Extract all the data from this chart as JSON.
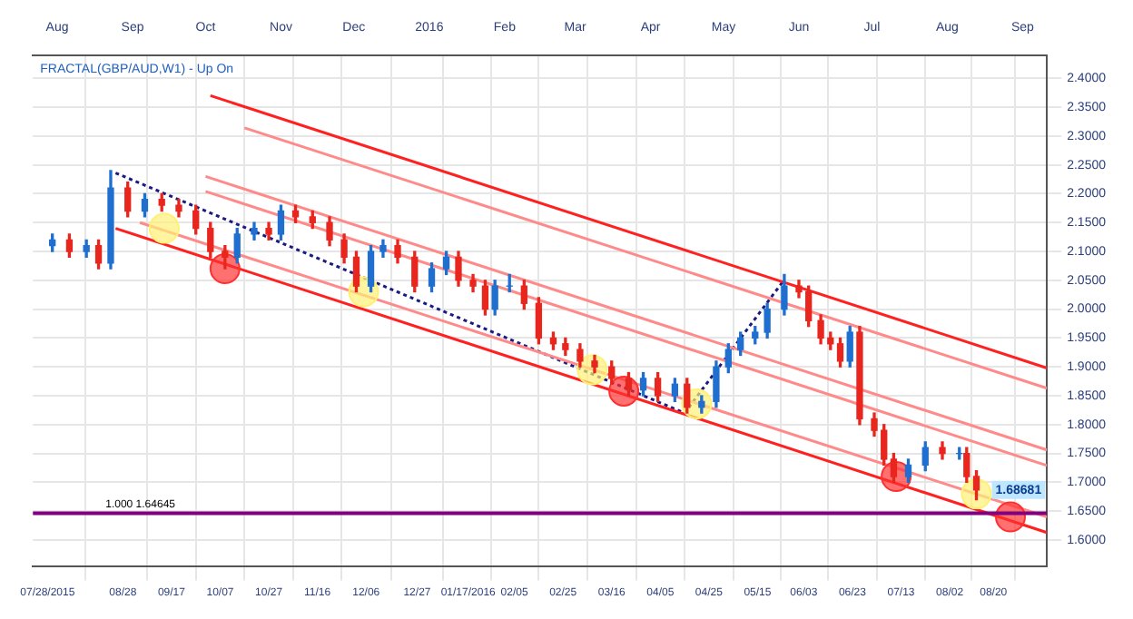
{
  "chart_data": {
    "type": "candlestick",
    "title": "FRACTAL(GBP/AUD,W1) - Up On",
    "x": [
      "2015-07-30",
      "2015-08-06",
      "2015-08-13",
      "2015-08-18",
      "2015-08-23",
      "2015-08-30",
      "2015-09-06",
      "2015-09-13",
      "2015-09-20",
      "2015-09-27",
      "2015-10-03",
      "2015-10-09",
      "2015-10-14",
      "2015-10-21",
      "2015-10-27",
      "2015-11-01",
      "2015-11-07",
      "2015-11-14",
      "2015-11-21",
      "2015-11-27",
      "2015-12-02",
      "2015-12-08",
      "2015-12-13",
      "2015-12-19",
      "2015-12-26",
      "2016-01-02",
      "2016-01-08",
      "2016-01-13",
      "2016-01-19",
      "2016-01-24",
      "2016-01-28",
      "2016-02-03",
      "2016-02-09",
      "2016-02-15",
      "2016-02-21",
      "2016-02-26",
      "2016-03-03",
      "2016-03-09",
      "2016-03-16",
      "2016-03-23",
      "2016-03-29",
      "2016-04-04",
      "2016-04-11",
      "2016-04-16",
      "2016-04-22",
      "2016-04-28",
      "2016-05-03",
      "2016-05-08",
      "2016-05-14",
      "2016-05-19",
      "2016-05-26",
      "2016-06-01",
      "2016-06-05",
      "2016-06-10",
      "2016-06-14",
      "2016-06-18",
      "2016-06-22",
      "2016-06-26",
      "2016-07-02",
      "2016-07-06",
      "2016-07-10",
      "2016-07-16",
      "2016-07-23",
      "2016-07-30",
      "2016-08-06",
      "2016-08-09",
      "2016-08-13"
    ],
    "ohlc": [
      [
        2.11,
        2.13,
        2.1,
        2.12
      ],
      [
        2.12,
        2.13,
        2.09,
        2.1
      ],
      [
        2.1,
        2.12,
        2.09,
        2.11
      ],
      [
        2.11,
        2.12,
        2.07,
        2.08
      ],
      [
        2.08,
        2.24,
        2.07,
        2.21
      ],
      [
        2.21,
        2.22,
        2.16,
        2.17
      ],
      [
        2.17,
        2.2,
        2.16,
        2.19
      ],
      [
        2.19,
        2.2,
        2.17,
        2.18
      ],
      [
        2.18,
        2.19,
        2.16,
        2.17
      ],
      [
        2.17,
        2.18,
        2.13,
        2.14
      ],
      [
        2.14,
        2.15,
        2.09,
        2.1
      ],
      [
        2.1,
        2.11,
        2.07,
        2.09
      ],
      [
        2.09,
        2.14,
        2.08,
        2.13
      ],
      [
        2.13,
        2.15,
        2.12,
        2.14
      ],
      [
        2.14,
        2.15,
        2.12,
        2.13
      ],
      [
        2.13,
        2.18,
        2.12,
        2.17
      ],
      [
        2.17,
        2.18,
        2.15,
        2.16
      ],
      [
        2.16,
        2.17,
        2.14,
        2.15
      ],
      [
        2.15,
        2.16,
        2.11,
        2.12
      ],
      [
        2.12,
        2.13,
        2.08,
        2.09
      ],
      [
        2.09,
        2.1,
        2.03,
        2.04
      ],
      [
        2.04,
        2.11,
        2.03,
        2.1
      ],
      [
        2.1,
        2.12,
        2.09,
        2.11
      ],
      [
        2.11,
        2.12,
        2.08,
        2.09
      ],
      [
        2.09,
        2.1,
        2.03,
        2.04
      ],
      [
        2.04,
        2.08,
        2.03,
        2.07
      ],
      [
        2.07,
        2.1,
        2.06,
        2.09
      ],
      [
        2.09,
        2.1,
        2.04,
        2.05
      ],
      [
        2.05,
        2.06,
        2.03,
        2.04
      ],
      [
        2.04,
        2.05,
        1.99,
        2.0
      ],
      [
        2.0,
        2.05,
        1.99,
        2.04
      ],
      [
        2.04,
        2.06,
        2.03,
        2.04
      ],
      [
        2.04,
        2.05,
        2.0,
        2.01
      ],
      [
        2.01,
        2.02,
        1.94,
        1.95
      ],
      [
        1.95,
        1.96,
        1.93,
        1.94
      ],
      [
        1.94,
        1.95,
        1.92,
        1.93
      ],
      [
        1.93,
        1.94,
        1.9,
        1.91
      ],
      [
        1.91,
        1.92,
        1.89,
        1.9
      ],
      [
        1.9,
        1.91,
        1.87,
        1.88
      ],
      [
        1.88,
        1.89,
        1.85,
        1.86
      ],
      [
        1.86,
        1.89,
        1.85,
        1.88
      ],
      [
        1.88,
        1.89,
        1.84,
        1.85
      ],
      [
        1.85,
        1.88,
        1.84,
        1.87
      ],
      [
        1.87,
        1.88,
        1.82,
        1.83
      ],
      [
        1.83,
        1.85,
        1.82,
        1.84
      ],
      [
        1.84,
        1.91,
        1.83,
        1.9
      ],
      [
        1.9,
        1.94,
        1.89,
        1.93
      ],
      [
        1.93,
        1.96,
        1.92,
        1.95
      ],
      [
        1.95,
        1.97,
        1.94,
        1.96
      ],
      [
        1.96,
        2.01,
        1.95,
        2.0
      ],
      [
        2.0,
        2.06,
        1.99,
        2.04
      ],
      [
        2.04,
        2.05,
        2.02,
        2.03
      ],
      [
        2.03,
        2.04,
        1.97,
        1.98
      ],
      [
        1.98,
        1.99,
        1.94,
        1.95
      ],
      [
        1.95,
        1.96,
        1.93,
        1.94
      ],
      [
        1.94,
        1.95,
        1.9,
        1.91
      ],
      [
        1.91,
        1.97,
        1.9,
        1.96
      ],
      [
        1.96,
        1.97,
        1.8,
        1.81
      ],
      [
        1.81,
        1.82,
        1.78,
        1.79
      ],
      [
        1.79,
        1.8,
        1.73,
        1.74
      ],
      [
        1.74,
        1.75,
        1.7,
        1.71
      ],
      [
        1.71,
        1.74,
        1.7,
        1.73
      ],
      [
        1.73,
        1.77,
        1.72,
        1.76
      ],
      [
        1.76,
        1.77,
        1.74,
        1.75
      ],
      [
        1.75,
        1.76,
        1.74,
        1.75
      ],
      [
        1.75,
        1.76,
        1.7,
        1.71
      ],
      [
        1.71,
        1.72,
        1.67,
        1.68681
      ]
    ],
    "series": [
      {
        "type": "line",
        "color": "#ff2020",
        "x": [
          "2015-10-03",
          "2016-09-11"
        ],
        "values": [
          2.37,
          1.898
        ]
      },
      {
        "type": "line",
        "color": "#ff8a8a",
        "x": [
          "2015-10-17",
          "2016-09-11"
        ],
        "values": [
          2.314,
          1.863
        ]
      },
      {
        "type": "line",
        "color": "#ff8a8a",
        "x": [
          "2015-10-01",
          "2016-09-11"
        ],
        "values": [
          2.23,
          1.756
        ]
      },
      {
        "type": "line",
        "color": "#ff8a8a",
        "x": [
          "2015-10-01",
          "2016-09-11"
        ],
        "values": [
          2.204,
          1.729
        ]
      },
      {
        "type": "line",
        "color": "#ff8a8a",
        "x": [
          "2015-09-04",
          "2016-09-11"
        ],
        "values": [
          2.15,
          1.64
        ]
      },
      {
        "type": "line",
        "color": "#ff2020",
        "x": [
          "2015-08-25",
          "2016-09-11"
        ],
        "values": [
          2.14,
          1.613
        ]
      },
      {
        "type": "line",
        "color": "#1a1a80",
        "line_style": "dotted",
        "x": [
          "2015-08-25",
          "2016-04-15",
          "2016-05-26"
        ],
        "values": [
          2.236,
          1.82,
          2.051
        ]
      },
      {
        "type": "scatter",
        "color": "#ff3030",
        "marker": "circle",
        "x": [
          "2015-10-09",
          "2016-03-21",
          "2016-07-11",
          "2016-08-27"
        ],
        "values": [
          2.07,
          1.858,
          1.71,
          1.64
        ]
      },
      {
        "type": "scatter",
        "color": "#fff176",
        "marker": "circle",
        "x": [
          "2015-09-14",
          "2015-12-05",
          "2016-03-08",
          "2016-04-20",
          "2016-08-13"
        ],
        "values": [
          2.14,
          2.03,
          1.895,
          1.836,
          1.68
        ]
      }
    ],
    "ref_lines": [
      {
        "axis": "y",
        "value": 1.64645,
        "label": "1.000 1.64645",
        "color": "#800080"
      }
    ],
    "annotations": [
      "1.68681"
    ],
    "xlim": [
      "2015-07-22",
      "2016-09-11"
    ],
    "xticks": [
      {
        "value": "2015-07-28",
        "label": "07/28/2015"
      },
      {
        "value": "2015-08-28",
        "label": "08/28"
      },
      {
        "value": "2015-09-17",
        "label": "09/17"
      },
      {
        "value": "2015-10-07",
        "label": "10/07"
      },
      {
        "value": "2015-10-27",
        "label": "10/27"
      },
      {
        "value": "2015-11-16",
        "label": "11/16"
      },
      {
        "value": "2015-12-06",
        "label": "12/06"
      },
      {
        "value": "2015-12-27",
        "label": "12/27"
      },
      {
        "value": "2016-01-17",
        "label": "01/17/2016"
      },
      {
        "value": "2016-02-05",
        "label": "02/05"
      },
      {
        "value": "2016-02-25",
        "label": "02/25"
      },
      {
        "value": "2016-03-16",
        "label": "03/16"
      },
      {
        "value": "2016-04-05",
        "label": "04/05"
      },
      {
        "value": "2016-04-25",
        "label": "04/25"
      },
      {
        "value": "2016-05-15",
        "label": "05/15"
      },
      {
        "value": "2016-06-03",
        "label": "06/03"
      },
      {
        "value": "2016-06-23",
        "label": "06/23"
      },
      {
        "value": "2016-07-13",
        "label": "07/13"
      },
      {
        "value": "2016-08-02",
        "label": "08/02"
      },
      {
        "value": "2016-08-20",
        "label": "08/20"
      }
    ],
    "x2lim": [
      "2015-07-22",
      "2016-09-11"
    ],
    "x2ticks": [
      {
        "value": "2015-08-01",
        "label": "Aug"
      },
      {
        "value": "2015-09-01",
        "label": "Sep"
      },
      {
        "value": "2015-10-01",
        "label": "Oct"
      },
      {
        "value": "2015-11-01",
        "label": "Nov"
      },
      {
        "value": "2015-12-01",
        "label": "Dec"
      },
      {
        "value": "2016-01-01",
        "label": "2016"
      },
      {
        "value": "2016-02-01",
        "label": "Feb"
      },
      {
        "value": "2016-03-01",
        "label": "Mar"
      },
      {
        "value": "2016-04-01",
        "label": "Apr"
      },
      {
        "value": "2016-05-01",
        "label": "May"
      },
      {
        "value": "2016-06-01",
        "label": "Jun"
      },
      {
        "value": "2016-07-01",
        "label": "Jul"
      },
      {
        "value": "2016-08-01",
        "label": "Aug"
      },
      {
        "value": "2016-09-01",
        "label": "Sep"
      }
    ],
    "ylim": [
      1.555,
      2.44
    ],
    "yticks": [
      {
        "value": 1.6,
        "label": "1.6000"
      },
      {
        "value": 1.65,
        "label": "1.6500"
      },
      {
        "value": 1.7,
        "label": "1.7000"
      },
      {
        "value": 1.75,
        "label": "1.7500"
      },
      {
        "value": 1.8,
        "label": "1.8000"
      },
      {
        "value": 1.85,
        "label": "1.8500"
      },
      {
        "value": 1.9,
        "label": "1.9000"
      },
      {
        "value": 1.95,
        "label": "1.9500"
      },
      {
        "value": 2.0,
        "label": "2.0000"
      },
      {
        "value": 2.05,
        "label": "2.0500"
      },
      {
        "value": 2.1,
        "label": "2.1000"
      },
      {
        "value": 2.15,
        "label": "2.1500"
      },
      {
        "value": 2.2,
        "label": "2.2000"
      },
      {
        "value": 2.25,
        "label": "2.2500"
      },
      {
        "value": 2.3,
        "label": "2.3000"
      },
      {
        "value": 2.35,
        "label": "2.3500"
      },
      {
        "value": 2.4,
        "label": "2.4000"
      }
    ],
    "grid": true,
    "legend": false
  }
}
